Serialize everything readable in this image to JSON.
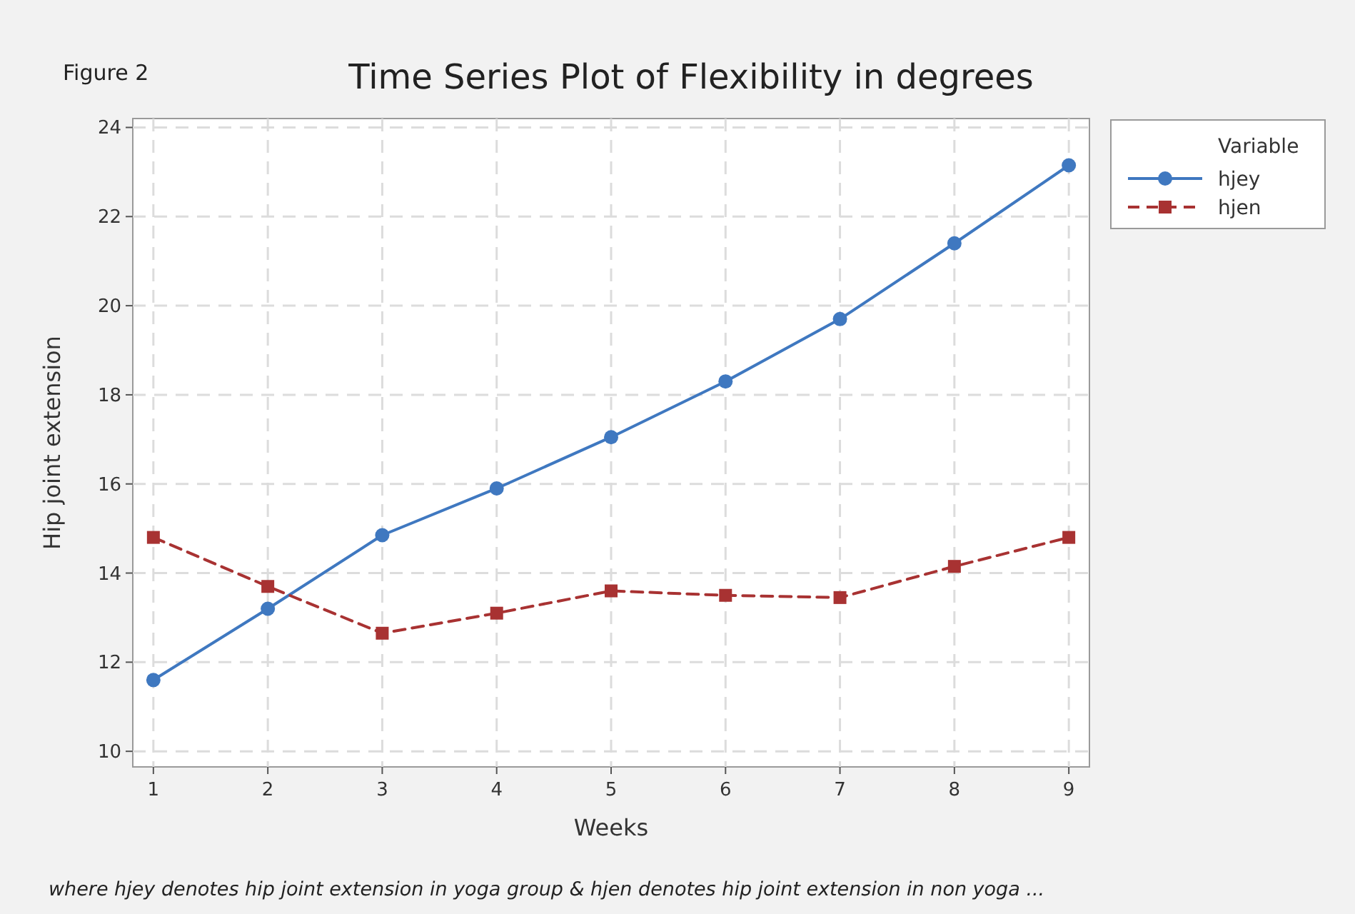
{
  "chart_data": {
    "type": "line",
    "title": "Time Series Plot of Flexibility in degrees",
    "xlabel": "Weeks",
    "ylabel": "Hip joint extension",
    "legend_title": "Variable",
    "annotations": [
      "Figure 2",
      "where hjey denotes hip joint extension in yoga group & hjen denotes hip joint extension in non yoga ..."
    ],
    "x": [
      1,
      2,
      3,
      4,
      5,
      6,
      7,
      8,
      9
    ],
    "series": [
      {
        "name": "hjey",
        "color": "#3f78c0",
        "marker": "circle",
        "line_style": "solid",
        "values": [
          11.6,
          13.2,
          14.85,
          15.9,
          17.05,
          18.3,
          19.7,
          21.4,
          23.15
        ]
      },
      {
        "name": "hjen",
        "color": "#a83232",
        "marker": "square",
        "line_style": "dashed",
        "values": [
          14.8,
          13.7,
          12.65,
          13.1,
          13.6,
          13.5,
          13.45,
          14.15,
          14.8
        ]
      }
    ],
    "xlim": [
      0.82,
      9.18
    ],
    "ylim": [
      9.65,
      24.2
    ],
    "xticks": [
      1,
      2,
      3,
      4,
      5,
      6,
      7,
      8,
      9
    ],
    "yticks": [
      10,
      12,
      14,
      16,
      18,
      20,
      22,
      24
    ],
    "grid": true,
    "legend": "top right"
  }
}
